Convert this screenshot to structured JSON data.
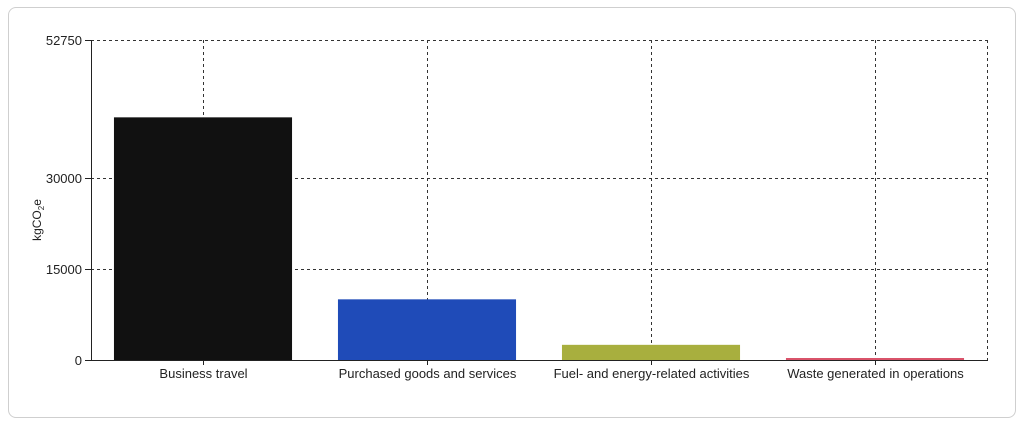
{
  "chart_data": {
    "type": "bar",
    "categories": [
      "Business travel",
      "Purchased goods and services",
      "Fuel- and energy-related activities",
      "Waste generated in operations"
    ],
    "values": [
      40000,
      10000,
      2500,
      250
    ],
    "colors": [
      "#111111",
      "#1f4bb8",
      "#a8af3e",
      "#d9536a"
    ],
    "ylabel": "kgCO2e",
    "ylabel_parts": {
      "base": "kgCO",
      "sub": "2",
      "tail": "e"
    },
    "ylim": [
      0,
      52750
    ],
    "yticks": [
      0,
      15000,
      30000,
      52750
    ],
    "ytick_labels": [
      "0",
      "15000",
      "30000",
      "52750"
    ],
    "grid": true
  }
}
